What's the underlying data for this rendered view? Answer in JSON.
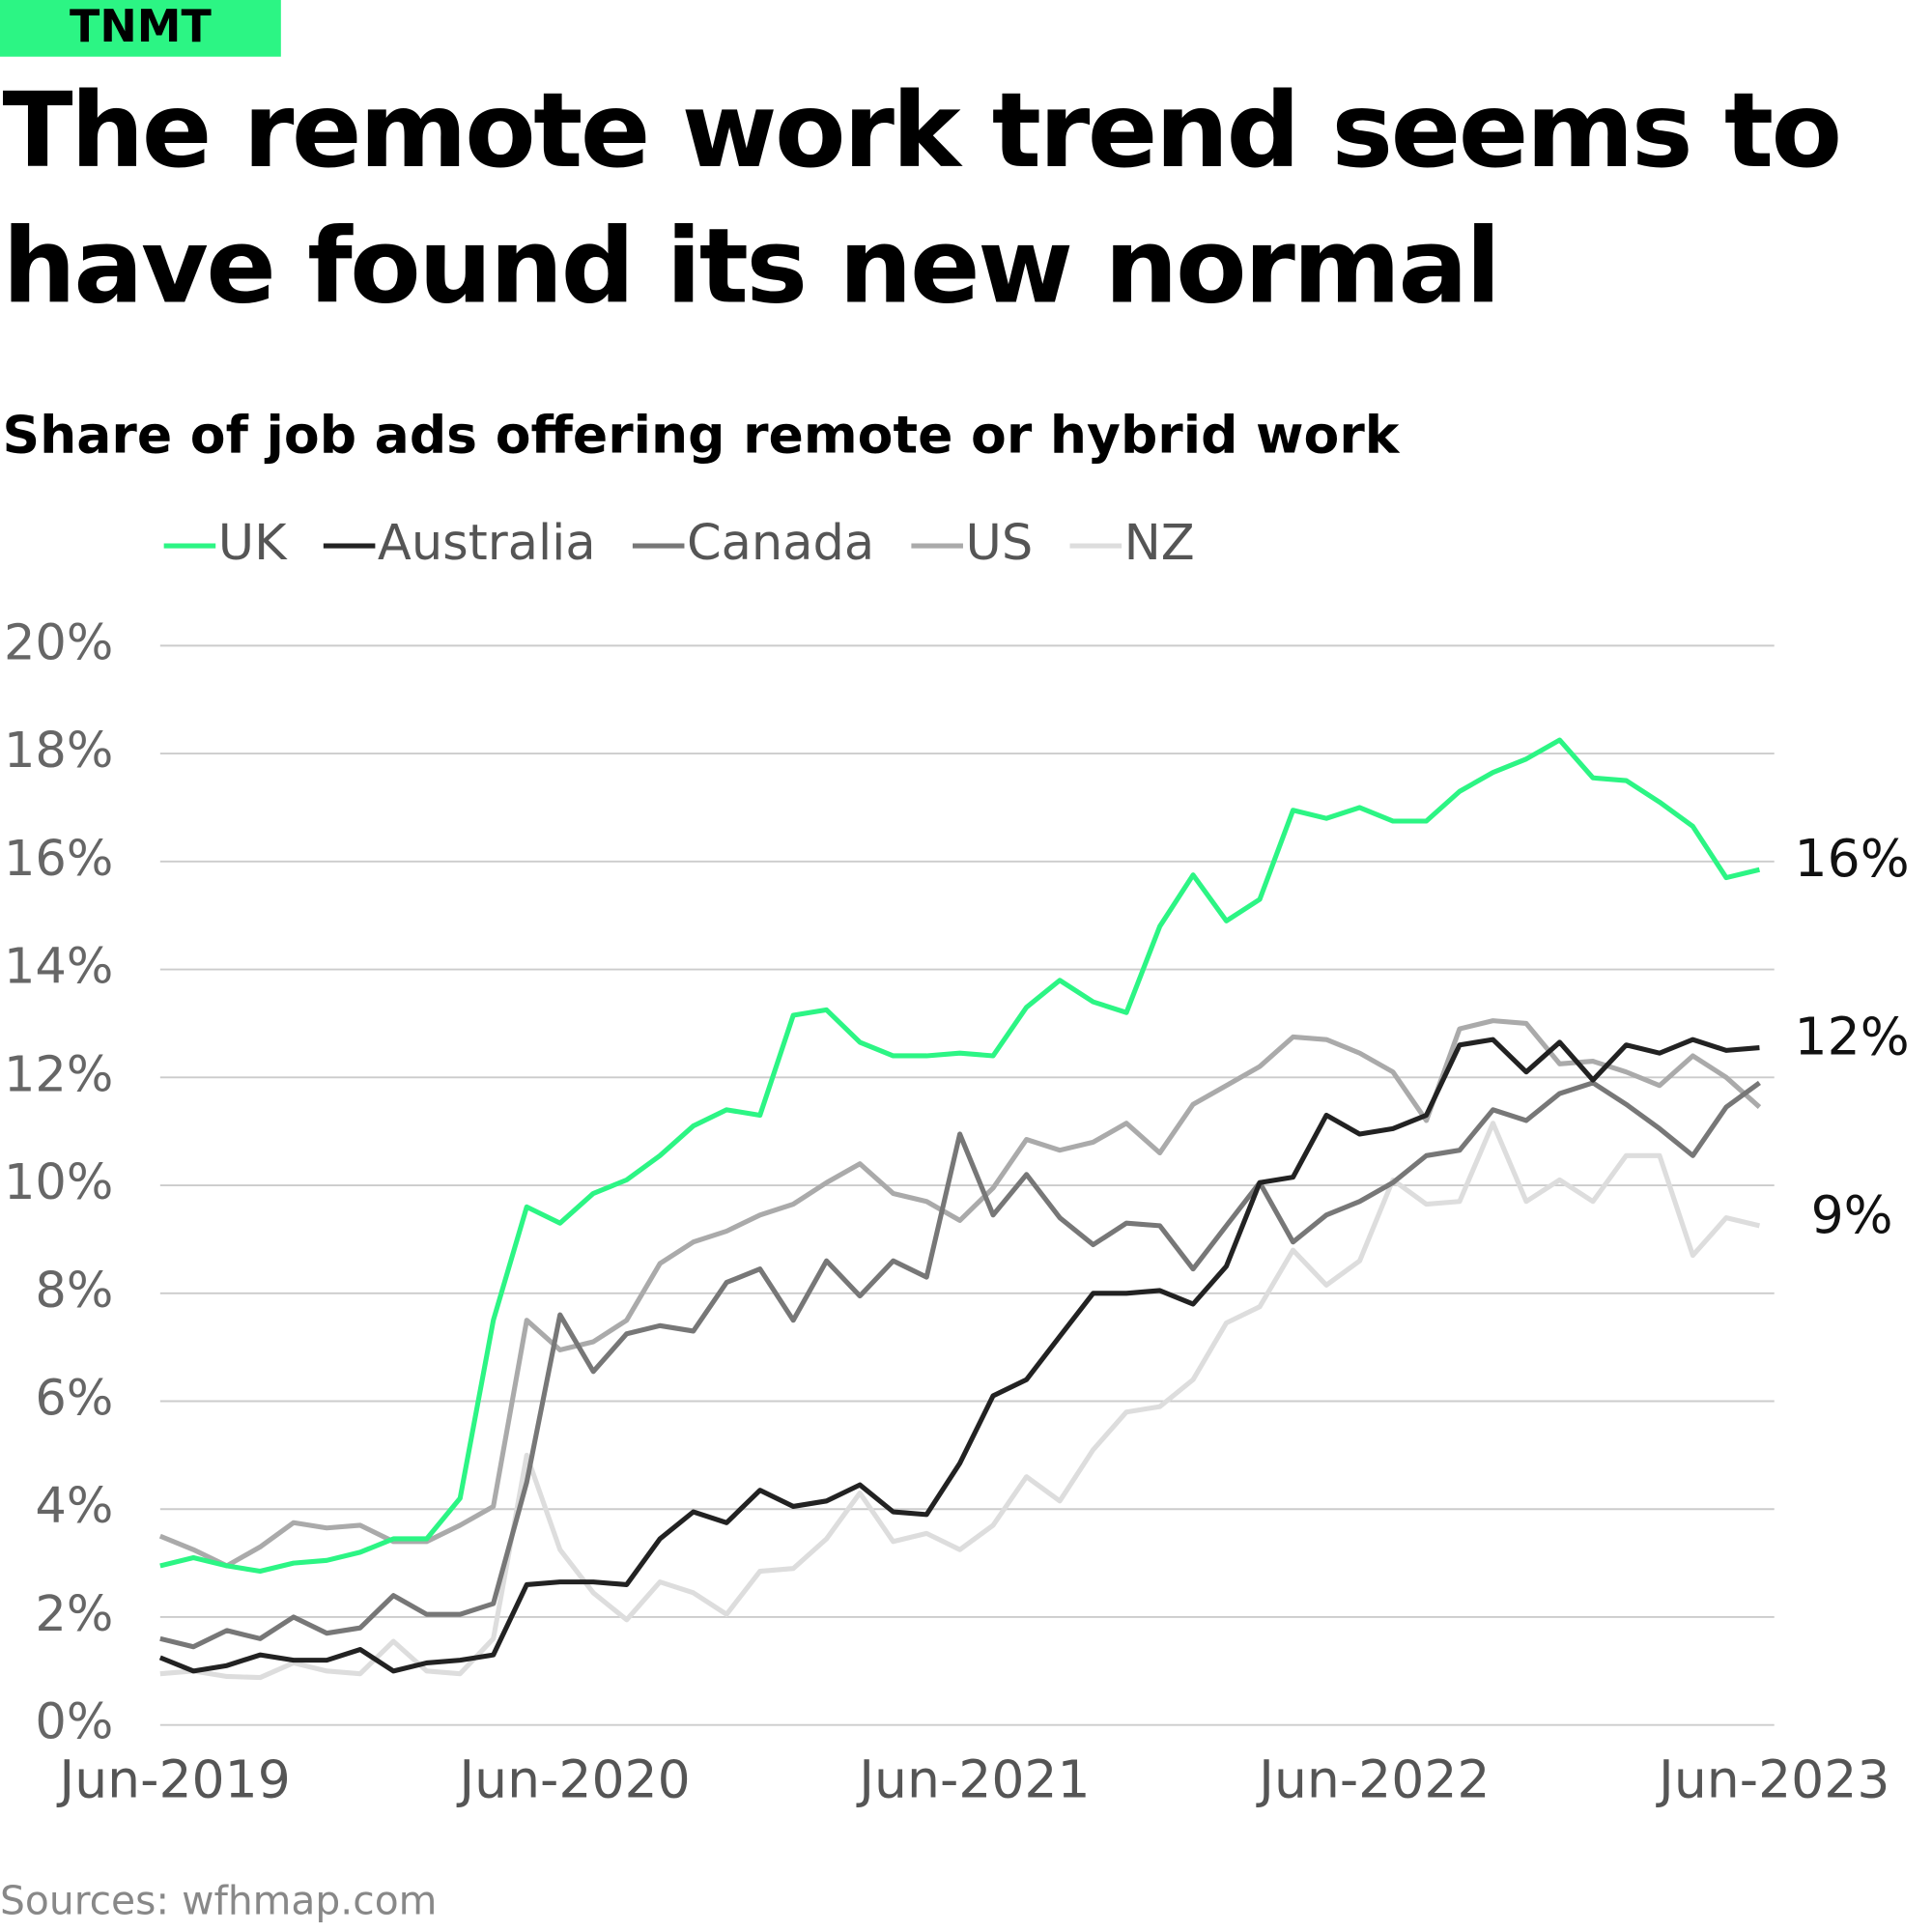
{
  "logo": "TNMT",
  "chart_data": {
    "type": "line",
    "title": [
      "The remote work trend seems to",
      "have found its new normal"
    ],
    "subtitle": "Share of job ads offering remote or hybrid work",
    "source": "Sources: wfhmap.com",
    "categories": [
      "Jun-2019",
      null,
      null,
      null,
      null,
      null,
      null,
      null,
      null,
      null,
      null,
      null,
      "Jun-2020",
      null,
      null,
      null,
      null,
      null,
      null,
      null,
      null,
      null,
      null,
      null,
      "Jun-2021",
      null,
      null,
      null,
      null,
      null,
      null,
      null,
      null,
      null,
      null,
      null,
      "Jun-2022",
      null,
      null,
      null,
      null,
      null,
      null,
      null,
      null,
      null,
      null,
      null,
      "Jun-2023"
    ],
    "ylim": [
      0,
      20
    ],
    "yticks": [
      {
        "value": 0,
        "label": "0%"
      },
      {
        "value": 2,
        "label": "2%"
      },
      {
        "value": 4,
        "label": "4%"
      },
      {
        "value": 6,
        "label": "6%"
      },
      {
        "value": 8,
        "label": "8%"
      },
      {
        "value": 10,
        "label": "10%"
      },
      {
        "value": 12,
        "label": "12%"
      },
      {
        "value": 14,
        "label": "14%"
      },
      {
        "value": 16,
        "label": "16%"
      },
      {
        "value": 18,
        "label": "18%"
      },
      {
        "value": 20,
        "label": "20%"
      }
    ],
    "grid": true,
    "legend": "top",
    "series": [
      {
        "name": "UK",
        "color": "#2cf584",
        "end_label": "16%",
        "values": [
          2.95,
          3.1,
          2.95,
          2.85,
          3.0,
          3.05,
          3.2,
          3.45,
          3.45,
          4.2,
          7.5,
          9.6,
          9.3,
          9.85,
          10.1,
          10.55,
          11.1,
          11.4,
          11.3,
          13.15,
          13.25,
          12.65,
          12.4,
          12.4,
          12.45,
          12.4,
          13.3,
          13.8,
          13.4,
          13.2,
          14.8,
          15.75,
          14.9,
          15.3,
          16.95,
          16.8,
          17.0,
          16.75,
          16.75,
          17.3,
          17.65,
          17.9,
          18.25,
          17.55,
          17.5,
          17.1,
          16.65,
          15.7,
          15.85
        ]
      },
      {
        "name": "Australia",
        "color": "#222222",
        "end_label": "12%",
        "values": [
          1.25,
          1.0,
          1.1,
          1.3,
          1.2,
          1.2,
          1.4,
          1.0,
          1.15,
          1.2,
          1.3,
          2.6,
          2.65,
          2.65,
          2.6,
          3.45,
          3.95,
          3.75,
          4.35,
          4.05,
          4.15,
          4.45,
          3.95,
          3.9,
          4.85,
          6.1,
          6.4,
          7.2,
          8.0,
          8.0,
          8.05,
          7.8,
          8.5,
          10.05,
          10.15,
          11.3,
          10.95,
          11.05,
          11.3,
          12.6,
          12.7,
          12.1,
          12.65,
          11.95,
          12.6,
          12.45,
          12.7,
          12.5,
          12.55
        ]
      },
      {
        "name": "Canada",
        "color": "#777777",
        "values": [
          1.6,
          1.45,
          1.75,
          1.6,
          2.0,
          1.7,
          1.8,
          2.4,
          2.05,
          2.05,
          2.25,
          4.5,
          7.6,
          6.55,
          7.25,
          7.4,
          7.3,
          8.2,
          8.45,
          7.5,
          8.6,
          7.95,
          8.6,
          8.3,
          10.95,
          9.45,
          10.2,
          9.4,
          8.9,
          9.3,
          9.25,
          8.45,
          9.25,
          10.05,
          8.95,
          9.45,
          9.7,
          10.05,
          10.55,
          10.65,
          11.4,
          11.2,
          11.7,
          11.9,
          11.5,
          11.05,
          10.55,
          11.45,
          11.9
        ]
      },
      {
        "name": "US",
        "color": "#aaaaaa",
        "values": [
          3.5,
          3.25,
          2.95,
          3.3,
          3.75,
          3.65,
          3.7,
          3.4,
          3.4,
          3.7,
          4.05,
          7.5,
          6.95,
          7.1,
          7.5,
          8.55,
          8.95,
          9.15,
          9.45,
          9.65,
          10.05,
          10.4,
          9.85,
          9.7,
          9.35,
          9.95,
          10.85,
          10.65,
          10.8,
          11.15,
          10.6,
          11.5,
          11.85,
          12.2,
          12.75,
          12.7,
          12.45,
          12.1,
          11.2,
          12.9,
          13.05,
          13.0,
          12.25,
          12.3,
          12.1,
          11.85,
          12.4,
          12.0,
          11.45
        ]
      },
      {
        "name": "NZ",
        "color": "#dddddd",
        "end_label": "9%",
        "values": [
          0.95,
          1.0,
          0.9,
          0.88,
          1.15,
          1.0,
          0.95,
          1.55,
          1.0,
          0.95,
          1.6,
          5.0,
          3.25,
          2.45,
          1.95,
          2.65,
          2.45,
          2.05,
          2.85,
          2.9,
          3.45,
          4.3,
          3.4,
          3.55,
          3.25,
          3.7,
          4.6,
          4.15,
          5.1,
          5.8,
          5.9,
          6.4,
          7.45,
          7.75,
          8.8,
          8.15,
          8.6,
          10.1,
          9.65,
          9.7,
          11.15,
          9.7,
          10.1,
          9.7,
          10.55,
          10.55,
          8.7,
          9.4,
          9.25
        ]
      }
    ]
  }
}
